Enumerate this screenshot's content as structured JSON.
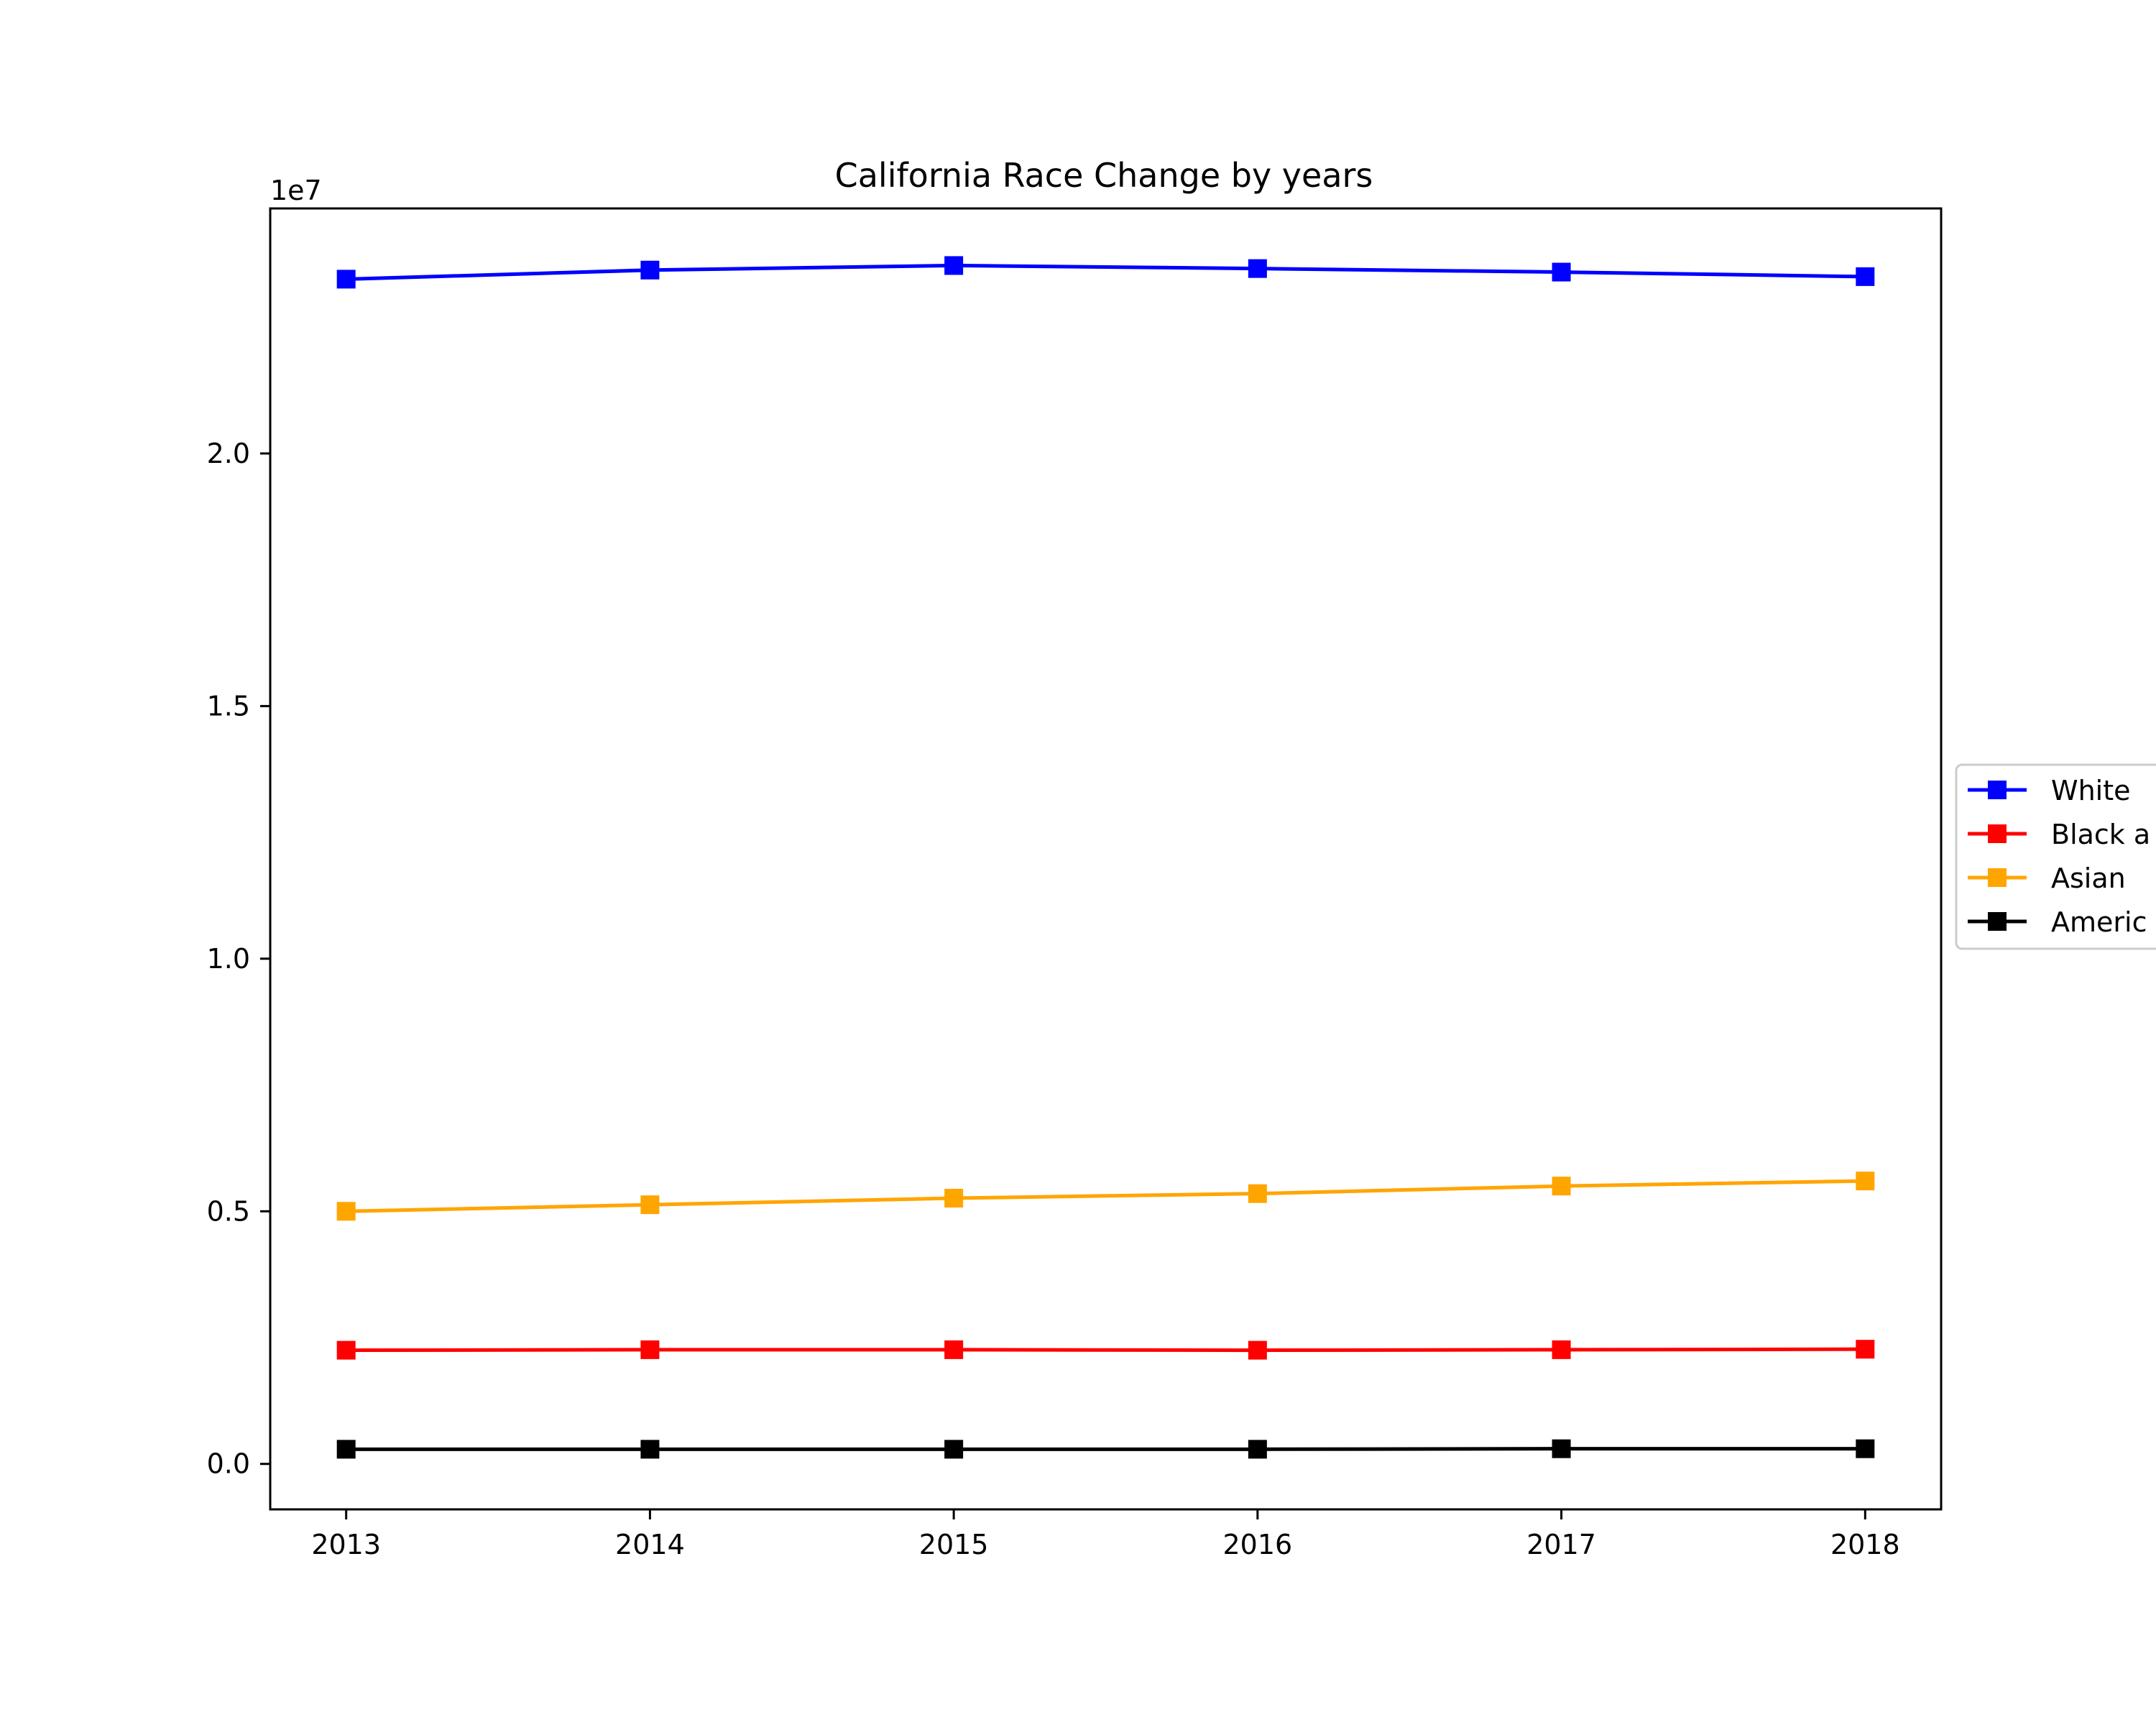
{
  "chart_data": {
    "type": "line",
    "title": "California Race Change by years",
    "xlabel": "",
    "ylabel": "",
    "y_offset_label": "1e7",
    "x": [
      2013,
      2014,
      2015,
      2016,
      2017,
      2018
    ],
    "x_tick_labels": [
      "2013",
      "2014",
      "2015",
      "2016",
      "2017",
      "2018"
    ],
    "y_ticks": [
      0.0,
      0.5,
      1.0,
      1.5,
      2.0
    ],
    "y_tick_labels": [
      "0.0",
      "0.5",
      "1.0",
      "1.5",
      "2.0"
    ],
    "xlim": [
      2012.75,
      2018.25
    ],
    "ylim": [
      -0.09,
      2.485
    ],
    "grid": false,
    "legend_position": "center-right",
    "series": [
      {
        "name": "White",
        "color": "#0000ff",
        "marker": "square",
        "values": [
          2.345,
          2.363,
          2.372,
          2.366,
          2.359,
          2.35
        ]
      },
      {
        "name": "Black a",
        "color": "#ff0000",
        "marker": "square",
        "values": [
          0.225,
          0.226,
          0.226,
          0.225,
          0.226,
          0.227
        ]
      },
      {
        "name": "Asian",
        "color": "#ffa500",
        "marker": "square",
        "values": [
          0.5,
          0.513,
          0.526,
          0.535,
          0.55,
          0.56
        ]
      },
      {
        "name": "Americ",
        "color": "#000000",
        "marker": "square",
        "values": [
          0.029,
          0.029,
          0.029,
          0.029,
          0.03,
          0.03
        ]
      }
    ]
  }
}
